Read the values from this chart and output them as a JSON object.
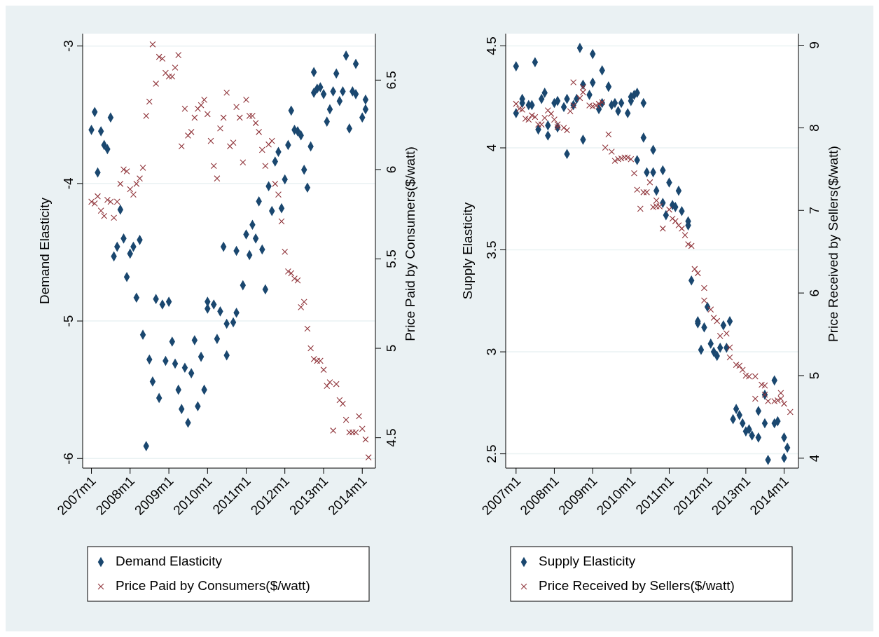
{
  "chart_data": [
    {
      "type": "scatter",
      "ylabel": "Demand Elasticity",
      "y2label": "Price Paid by Consumers($/watt)",
      "legend": "bottom",
      "grid": "y",
      "xlim": [
        "2006-10-10",
        "2014-05-05"
      ],
      "xticks": [
        {
          "value": "2007-01",
          "label": "2007m1"
        },
        {
          "value": "2008-01",
          "label": "2008m1"
        },
        {
          "value": "2009-01",
          "label": "2009m1"
        },
        {
          "value": "2010-01",
          "label": "2010m1"
        },
        {
          "value": "2011-01",
          "label": "2011m1"
        },
        {
          "value": "2012-01",
          "label": "2012m1"
        },
        {
          "value": "2013-01",
          "label": "2013m1"
        },
        {
          "value": "2014-01",
          "label": "2014m1"
        }
      ],
      "ylim": [
        -6.07,
        -2.91
      ],
      "yticks": [
        -6,
        -5,
        -4,
        -3
      ],
      "y2lim": [
        4.33,
        6.76
      ],
      "y2ticks": [
        4.5,
        5,
        5.5,
        6,
        6.5
      ],
      "series": [
        {
          "name": "Demand Elasticity",
          "color": "#1a476f",
          "marker": "diamond",
          "x": [
            "2007-01",
            "2007-02",
            "2007-03",
            "2007-04",
            "2007-05",
            "2007-06",
            "2007-07",
            "2007-08",
            "2007-09",
            "2007-10",
            "2007-11",
            "2007-12",
            "2008-01",
            "2008-02",
            "2008-03",
            "2008-04",
            "2008-05",
            "2008-06",
            "2008-07",
            "2008-08",
            "2008-09",
            "2008-10",
            "2008-11",
            "2008-12",
            "2009-01",
            "2009-02",
            "2009-03",
            "2009-04",
            "2009-05",
            "2009-06",
            "2009-07",
            "2009-08",
            "2009-09",
            "2009-10",
            "2009-11",
            "2009-12",
            "2010-01",
            "2010-01",
            "2010-03",
            "2010-04",
            "2010-05",
            "2010-06",
            "2010-07",
            "2010-07",
            "2010-09",
            "2010-10",
            "2010-10",
            "2010-12",
            "2011-01",
            "2011-02",
            "2011-03",
            "2011-04",
            "2011-05",
            "2011-06",
            "2011-07",
            "2011-08",
            "2011-09",
            "2011-10",
            "2011-11",
            "2011-12",
            "2012-01",
            "2012-02",
            "2012-03",
            "2012-04",
            "2012-05",
            "2012-06",
            "2012-07",
            "2012-08",
            "2012-09",
            "2012-10",
            "2012-10",
            "2012-11",
            "2012-12",
            "2013-01",
            "2013-02",
            "2013-03",
            "2013-04",
            "2013-05",
            "2013-06",
            "2013-07",
            "2013-08",
            "2013-09",
            "2013-10",
            "2013-11",
            "2013-11",
            "2014-01",
            "2014-02",
            "2014-02"
          ],
          "values": [
            -3.61,
            -3.48,
            -3.92,
            -3.62,
            -3.72,
            -3.75,
            -3.52,
            -4.53,
            -4.46,
            -4.19,
            -4.4,
            -4.68,
            -4.51,
            -4.46,
            -4.83,
            -4.41,
            -5.1,
            -5.91,
            -5.28,
            -5.44,
            -4.84,
            -5.56,
            -4.88,
            -5.29,
            -4.86,
            -5.15,
            -5.31,
            -5.5,
            -5.64,
            -5.34,
            -5.74,
            -5.38,
            -5.14,
            -5.62,
            -5.26,
            -5.5,
            -4.91,
            -4.86,
            -4.88,
            -5.13,
            -4.93,
            -4.46,
            -5.02,
            -5.25,
            -5.01,
            -4.94,
            -4.49,
            -4.74,
            -4.37,
            -4.52,
            -4.3,
            -4.4,
            -4.13,
            -4.48,
            -4.77,
            -4.02,
            -4.2,
            -3.84,
            -3.77,
            -4.18,
            -3.97,
            -3.72,
            -3.47,
            -3.61,
            -3.62,
            -3.65,
            -3.9,
            -4.03,
            -3.73,
            -3.19,
            -3.34,
            -3.31,
            -3.3,
            -3.35,
            -3.55,
            -3.46,
            -3.33,
            -3.2,
            -3.4,
            -3.33,
            -3.07,
            -3.6,
            -3.33,
            -3.13,
            -3.35,
            -3.52,
            -3.39,
            -3.46
          ]
        },
        {
          "name": "Price Paid by Consumers($/watt)",
          "color": "#90353b",
          "marker": "cross",
          "axis": "y2",
          "x": [
            "2007-01",
            "2007-02",
            "2007-03",
            "2007-04",
            "2007-05",
            "2007-06",
            "2007-07",
            "2007-08",
            "2007-09",
            "2007-10",
            "2007-11",
            "2007-12",
            "2008-01",
            "2008-02",
            "2008-03",
            "2008-04",
            "2008-05",
            "2008-06",
            "2008-07",
            "2008-08",
            "2008-09",
            "2008-10",
            "2008-11",
            "2008-12",
            "2009-01",
            "2009-02",
            "2009-03",
            "2009-04",
            "2009-05",
            "2009-06",
            "2009-07",
            "2009-08",
            "2009-09",
            "2009-10",
            "2009-11",
            "2009-12",
            "2010-01",
            "2010-02",
            "2010-03",
            "2010-04",
            "2010-05",
            "2010-06",
            "2010-07",
            "2010-08",
            "2010-09",
            "2010-10",
            "2010-11",
            "2010-12",
            "2011-01",
            "2011-02",
            "2011-03",
            "2011-04",
            "2011-05",
            "2011-06",
            "2011-07",
            "2011-08",
            "2011-09",
            "2011-10",
            "2011-11",
            "2011-12",
            "2012-01",
            "2012-02",
            "2012-03",
            "2012-04",
            "2012-05",
            "2012-06",
            "2012-07",
            "2012-08",
            "2012-09",
            "2012-10",
            "2012-11",
            "2012-12",
            "2013-01",
            "2013-02",
            "2013-03",
            "2013-04",
            "2013-05",
            "2013-06",
            "2013-07",
            "2013-08",
            "2013-09",
            "2013-10",
            "2013-11",
            "2013-12",
            "2014-01",
            "2014-02",
            "2014-03"
          ],
          "values": [
            5.82,
            5.81,
            5.85,
            5.77,
            5.74,
            5.83,
            5.82,
            5.73,
            5.82,
            5.92,
            6.0,
            5.99,
            5.89,
            5.86,
            5.92,
            5.95,
            6.01,
            6.3,
            6.38,
            6.7,
            6.48,
            6.63,
            6.62,
            6.54,
            6.52,
            6.52,
            6.57,
            6.64,
            6.13,
            6.34,
            6.19,
            6.21,
            6.29,
            6.34,
            6.36,
            6.39,
            6.31,
            6.16,
            6.02,
            5.95,
            6.23,
            6.29,
            6.43,
            6.13,
            6.15,
            6.35,
            6.29,
            6.04,
            6.39,
            6.3,
            6.3,
            6.26,
            6.21,
            6.11,
            6.02,
            6.14,
            6.16,
            5.92,
            5.86,
            5.71,
            5.54,
            5.43,
            5.42,
            5.39,
            5.38,
            5.23,
            5.26,
            5.11,
            5.0,
            4.94,
            4.93,
            4.93,
            4.88,
            4.79,
            4.81,
            4.54,
            4.8,
            4.71,
            4.69,
            4.6,
            4.53,
            4.53,
            4.53,
            4.62,
            4.55,
            4.49,
            4.39
          ]
        }
      ]
    },
    {
      "type": "scatter",
      "ylabel": "Supply Elasticity",
      "y2label": "Price Received by Sellers($/watt)",
      "legend": "bottom",
      "grid": "y",
      "xlim": [
        "2006-09-24",
        "2014-05-18"
      ],
      "xticks": [
        {
          "value": "2007-01",
          "label": "2007m1"
        },
        {
          "value": "2008-01",
          "label": "2008m1"
        },
        {
          "value": "2009-01",
          "label": "2009m1"
        },
        {
          "value": "2010-01",
          "label": "2010m1"
        },
        {
          "value": "2011-01",
          "label": "2011m1"
        },
        {
          "value": "2012-01",
          "label": "2012m1"
        },
        {
          "value": "2013-01",
          "label": "2013m1"
        },
        {
          "value": "2014-01",
          "label": "2014m1"
        }
      ],
      "ylim": [
        2.43,
        4.56
      ],
      "yticks": [
        2.5,
        3,
        3.5,
        4,
        4.5
      ],
      "y2lim": [
        3.88,
        9.14
      ],
      "y2ticks": [
        4,
        5,
        6,
        7,
        8,
        9
      ],
      "series": [
        {
          "name": "Supply Elasticity",
          "color": "#1a476f",
          "marker": "diamond",
          "x": [
            "2007-01",
            "2007-01",
            "2007-03",
            "2007-03",
            "2007-05",
            "2007-06",
            "2007-07",
            "2007-08",
            "2007-09",
            "2007-10",
            "2007-11",
            "2007-11",
            "2008-01",
            "2008-02",
            "2008-02",
            "2008-04",
            "2008-05",
            "2008-05",
            "2008-07",
            "2008-08",
            "2008-09",
            "2008-10",
            "2008-10",
            "2008-12",
            "2009-01",
            "2009-01",
            "2009-03",
            "2009-04",
            "2009-04",
            "2009-06",
            "2009-06",
            "2009-07",
            "2009-08",
            "2009-09",
            "2009-10",
            "2009-12",
            "2010-01",
            "2010-01",
            "2010-02",
            "2010-03",
            "2010-03",
            "2010-05",
            "2010-05",
            "2010-06",
            "2010-08",
            "2010-08",
            "2010-09",
            "2010-11",
            "2010-11",
            "2010-12",
            "2011-01",
            "2011-02",
            "2011-03",
            "2011-04",
            "2011-05",
            "2011-07",
            "2011-07",
            "2011-08",
            "2011-10",
            "2011-10",
            "2011-11",
            "2011-12",
            "2012-01",
            "2012-02",
            "2012-03",
            "2012-04",
            "2012-05",
            "2012-06",
            "2012-07",
            "2012-08",
            "2012-09",
            "2012-10",
            "2012-11",
            "2012-12",
            "2013-01",
            "2013-02",
            "2013-03",
            "2013-05",
            "2013-05",
            "2013-07",
            "2013-07",
            "2013-08",
            "2013-10",
            "2013-10",
            "2013-11",
            "2014-01",
            "2014-01",
            "2014-02"
          ],
          "values": [
            4.17,
            4.4,
            4.22,
            4.24,
            4.21,
            4.21,
            4.42,
            4.09,
            4.24,
            4.27,
            4.11,
            4.06,
            4.22,
            4.23,
            4.1,
            4.2,
            4.24,
            3.97,
            4.21,
            4.24,
            4.49,
            4.04,
            4.31,
            4.26,
            4.46,
            4.32,
            4.19,
            4.38,
            4.22,
            4.3,
            4.3,
            4.21,
            4.22,
            4.18,
            4.22,
            4.17,
            4.23,
            4.25,
            4.26,
            4.27,
            3.94,
            4.05,
            4.22,
            3.88,
            3.88,
            3.99,
            3.79,
            3.89,
            3.73,
            3.67,
            3.83,
            3.72,
            3.71,
            3.79,
            3.69,
            3.64,
            3.62,
            3.35,
            3.15,
            3.14,
            3.01,
            3.12,
            3.22,
            3.04,
            3.0,
            2.98,
            3.02,
            3.13,
            3.02,
            3.15,
            2.67,
            2.72,
            2.69,
            2.65,
            2.61,
            2.62,
            2.59,
            2.71,
            2.58,
            2.65,
            2.79,
            2.47,
            2.65,
            2.86,
            2.66,
            2.48,
            2.58,
            2.53
          ]
        },
        {
          "name": "Price Received by Sellers($/watt)",
          "color": "#90353b",
          "marker": "cross",
          "axis": "y2",
          "x": [
            "2007-01",
            "2007-02",
            "2007-03",
            "2007-04",
            "2007-05",
            "2007-06",
            "2007-07",
            "2007-08",
            "2007-09",
            "2007-10",
            "2007-11",
            "2007-12",
            "2008-01",
            "2008-02",
            "2008-02",
            "2008-04",
            "2008-05",
            "2008-06",
            "2008-07",
            "2008-07",
            "2008-09",
            "2008-10",
            "2008-10",
            "2008-12",
            "2009-01",
            "2009-02",
            "2009-03",
            "2009-04",
            "2009-05",
            "2009-06",
            "2009-07",
            "2009-08",
            "2009-09",
            "2009-10",
            "2009-11",
            "2009-12",
            "2010-01",
            "2010-02",
            "2010-03",
            "2010-04",
            "2010-05",
            "2010-06",
            "2010-07",
            "2010-08",
            "2010-09",
            "2010-09",
            "2010-10",
            "2010-11",
            "2011-01",
            "2011-02",
            "2011-03",
            "2011-04",
            "2011-05",
            "2011-06",
            "2011-07",
            "2011-08",
            "2011-09",
            "2011-10",
            "2011-12",
            "2011-12",
            "2012-02",
            "2012-03",
            "2012-04",
            "2012-05",
            "2012-07",
            "2012-08",
            "2012-08",
            "2012-10",
            "2012-11",
            "2012-12",
            "2013-01",
            "2013-02",
            "2013-04",
            "2013-04",
            "2013-06",
            "2013-07",
            "2013-07",
            "2013-08",
            "2013-10",
            "2013-11",
            "2013-12",
            "2013-12",
            "2014-01",
            "2014-03"
          ],
          "values": [
            8.29,
            8.23,
            8.22,
            8.11,
            8.1,
            8.15,
            8.13,
            8.04,
            8.04,
            8.12,
            8.21,
            8.17,
            8.1,
            8.04,
            8.01,
            8.0,
            7.97,
            8.2,
            8.27,
            8.55,
            8.36,
            8.49,
            8.43,
            8.27,
            8.26,
            8.27,
            8.29,
            8.31,
            7.76,
            7.92,
            7.71,
            7.6,
            7.62,
            7.63,
            7.64,
            7.64,
            7.62,
            7.45,
            7.25,
            7.02,
            7.22,
            7.22,
            7.34,
            7.04,
            7.05,
            7.12,
            7.05,
            6.78,
            7.01,
            6.9,
            6.87,
            6.82,
            6.78,
            6.7,
            6.59,
            6.57,
            6.29,
            6.24,
            6.06,
            5.91,
            5.8,
            5.7,
            5.66,
            5.48,
            5.51,
            5.34,
            5.22,
            5.13,
            5.12,
            5.07,
            5.0,
            4.99,
            4.72,
            4.99,
            4.89,
            4.88,
            4.77,
            4.69,
            4.69,
            4.7,
            4.79,
            4.72,
            4.66,
            4.56
          ]
        }
      ]
    }
  ]
}
